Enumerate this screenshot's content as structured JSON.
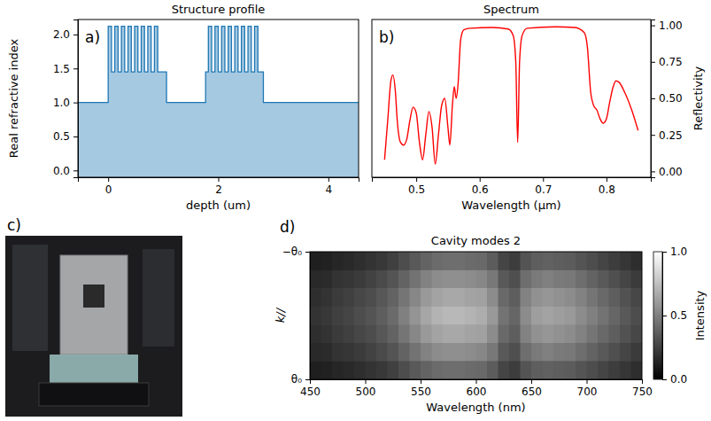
{
  "chart_data": [
    {
      "type": "step_area",
      "label": "a)",
      "title": "Structure profile",
      "xlabel": "depth (um)",
      "ylabel": "Real refractive index",
      "color": "#1f77b4",
      "xlim": [
        -0.55,
        4.55
      ],
      "xticks": [
        0,
        2,
        4
      ],
      "ylim": [
        -0.1,
        2.22
      ],
      "yticks": [
        {
          "value": 0,
          "label": "0.0"
        },
        {
          "value": 0.5,
          "label": "0.5"
        },
        {
          "value": 1,
          "label": "1.0"
        },
        {
          "value": 1.5,
          "label": "1.5"
        },
        {
          "value": 2,
          "label": "2.0"
        }
      ],
      "x": [
        -0.55,
        0,
        0.06,
        0.12,
        0.18,
        0.24,
        0.3,
        0.36,
        0.42,
        0.48,
        0.54,
        0.6,
        0.66,
        0.72,
        0.78,
        0.84,
        0.9,
        1.06,
        1.77,
        1.82,
        1.88,
        1.94,
        2.0,
        2.06,
        2.12,
        2.18,
        2.24,
        2.3,
        2.36,
        2.42,
        2.48,
        2.54,
        2.6,
        2.66,
        2.72,
        2.82,
        4.55
      ],
      "values": [
        1.0,
        2.12,
        1.45,
        2.12,
        1.45,
        2.12,
        1.45,
        2.12,
        1.45,
        2.12,
        1.45,
        2.12,
        1.45,
        2.12,
        1.45,
        2.12,
        1.45,
        1.0,
        1.45,
        2.12,
        1.45,
        2.12,
        1.45,
        2.12,
        1.45,
        2.12,
        1.45,
        2.12,
        1.45,
        2.12,
        1.45,
        2.12,
        1.45,
        2.12,
        1.45,
        1.0,
        1.0
      ]
    },
    {
      "type": "line",
      "label": "b)",
      "title": "Spectrum",
      "xlabel": "Wavelength (µm)",
      "y2label": "Reflectivity",
      "xlim": [
        0.43,
        0.87
      ],
      "xticks": [
        0.5,
        0.6,
        0.7,
        0.8
      ],
      "y2lim": [
        -0.04,
        1.04
      ],
      "y2ticks": [
        {
          "value": 0,
          "label": "0.00"
        },
        {
          "value": 0.25,
          "label": "0.25"
        },
        {
          "value": 0.5,
          "label": "0.50"
        },
        {
          "value": 0.75,
          "label": "0.75"
        },
        {
          "value": 1,
          "label": "1.00"
        }
      ],
      "x": [
        0.45,
        0.455,
        0.46,
        0.463,
        0.467,
        0.47,
        0.475,
        0.48,
        0.485,
        0.49,
        0.495,
        0.5,
        0.505,
        0.51,
        0.515,
        0.52,
        0.525,
        0.53,
        0.535,
        0.54,
        0.545,
        0.55,
        0.553,
        0.557,
        0.56,
        0.563,
        0.566,
        0.57,
        0.575,
        0.585,
        0.62,
        0.645,
        0.653,
        0.657,
        0.66,
        0.663,
        0.667,
        0.675,
        0.72,
        0.75,
        0.765,
        0.77,
        0.775,
        0.78,
        0.785,
        0.79,
        0.795,
        0.8,
        0.805,
        0.81,
        0.815,
        0.82,
        0.83,
        0.84,
        0.85
      ],
      "series": [
        {
          "axis": "y2",
          "color": "red",
          "values": [
            0.08,
            0.35,
            0.62,
            0.66,
            0.55,
            0.35,
            0.2,
            0.18,
            0.22,
            0.35,
            0.44,
            0.4,
            0.2,
            0.08,
            0.25,
            0.41,
            0.3,
            0.05,
            0.25,
            0.45,
            0.5,
            0.3,
            0.18,
            0.45,
            0.58,
            0.5,
            0.6,
            0.9,
            0.97,
            0.98,
            0.985,
            0.975,
            0.93,
            0.75,
            0.2,
            0.75,
            0.93,
            0.98,
            0.99,
            0.985,
            0.95,
            0.85,
            0.55,
            0.45,
            0.42,
            0.36,
            0.33,
            0.36,
            0.47,
            0.57,
            0.62,
            0.61,
            0.53,
            0.42,
            0.28
          ]
        }
      ]
    },
    {
      "type": "heatmap",
      "label": "d)",
      "title": "Cavity modes 2",
      "xlabel": "Wavelength (nm)",
      "ylabel": "k//",
      "color": "gray",
      "xlim": [
        450,
        750
      ],
      "xticks": [
        450,
        500,
        550,
        600,
        650,
        700,
        750
      ],
      "ylim": [
        -1,
        1
      ],
      "yticks": [
        {
          "value": -1,
          "label": "−θ₀"
        },
        {
          "value": 1,
          "label": "θ₀"
        }
      ],
      "xbins": [
        450,
        460,
        470,
        480,
        490,
        500,
        510,
        520,
        530,
        540,
        550,
        560,
        570,
        580,
        590,
        600,
        610,
        620,
        630,
        640,
        650,
        660,
        670,
        680,
        690,
        700,
        710,
        720,
        730,
        740,
        750
      ],
      "ybins": [
        -1,
        -0.71,
        -0.43,
        -0.14,
        0.14,
        0.43,
        0.71,
        1
      ],
      "cells": [
        [
          0.12,
          0.13,
          0.15,
          0.16,
          0.18,
          0.2,
          0.22,
          0.25,
          0.3,
          0.35,
          0.39,
          0.42,
          0.43,
          0.43,
          0.42,
          0.41,
          0.36,
          0.27,
          0.24,
          0.33,
          0.37,
          0.38,
          0.37,
          0.36,
          0.33,
          0.3,
          0.27,
          0.24,
          0.21,
          0.18
        ],
        [
          0.16,
          0.17,
          0.2,
          0.21,
          0.23,
          0.26,
          0.29,
          0.33,
          0.39,
          0.45,
          0.51,
          0.55,
          0.56,
          0.56,
          0.55,
          0.53,
          0.47,
          0.35,
          0.31,
          0.43,
          0.48,
          0.5,
          0.48,
          0.47,
          0.43,
          0.39,
          0.35,
          0.31,
          0.27,
          0.23
        ],
        [
          0.18,
          0.2,
          0.23,
          0.25,
          0.28,
          0.3,
          0.34,
          0.39,
          0.46,
          0.53,
          0.6,
          0.64,
          0.66,
          0.66,
          0.64,
          0.63,
          0.55,
          0.41,
          0.37,
          0.51,
          0.57,
          0.59,
          0.57,
          0.55,
          0.51,
          0.46,
          0.41,
          0.37,
          0.32,
          0.28
        ],
        [
          0.2,
          0.22,
          0.25,
          0.27,
          0.3,
          0.33,
          0.37,
          0.42,
          0.5,
          0.58,
          0.65,
          0.7,
          0.72,
          0.72,
          0.7,
          0.68,
          0.6,
          0.45,
          0.4,
          0.55,
          0.62,
          0.64,
          0.62,
          0.6,
          0.55,
          0.5,
          0.45,
          0.4,
          0.35,
          0.3
        ],
        [
          0.18,
          0.2,
          0.23,
          0.25,
          0.28,
          0.3,
          0.34,
          0.39,
          0.46,
          0.53,
          0.6,
          0.64,
          0.66,
          0.66,
          0.64,
          0.63,
          0.55,
          0.41,
          0.37,
          0.51,
          0.57,
          0.59,
          0.57,
          0.55,
          0.51,
          0.46,
          0.41,
          0.37,
          0.32,
          0.28
        ],
        [
          0.16,
          0.17,
          0.2,
          0.21,
          0.23,
          0.26,
          0.29,
          0.33,
          0.39,
          0.45,
          0.51,
          0.55,
          0.56,
          0.56,
          0.55,
          0.53,
          0.47,
          0.35,
          0.31,
          0.43,
          0.48,
          0.5,
          0.48,
          0.47,
          0.43,
          0.39,
          0.35,
          0.31,
          0.27,
          0.23
        ],
        [
          0.12,
          0.13,
          0.15,
          0.16,
          0.18,
          0.2,
          0.22,
          0.25,
          0.3,
          0.35,
          0.39,
          0.42,
          0.43,
          0.43,
          0.42,
          0.41,
          0.36,
          0.27,
          0.24,
          0.33,
          0.37,
          0.38,
          0.37,
          0.36,
          0.33,
          0.3,
          0.27,
          0.24,
          0.21,
          0.18
        ]
      ],
      "colorbar": {
        "range": [
          0,
          1
        ],
        "ticks": [
          {
            "value": 0,
            "label": "0.0"
          },
          {
            "value": 0.5,
            "label": "0.5"
          },
          {
            "value": 1,
            "label": "1.0"
          }
        ],
        "label": "Intensity"
      }
    }
  ],
  "image": {
    "label": "c)"
  }
}
